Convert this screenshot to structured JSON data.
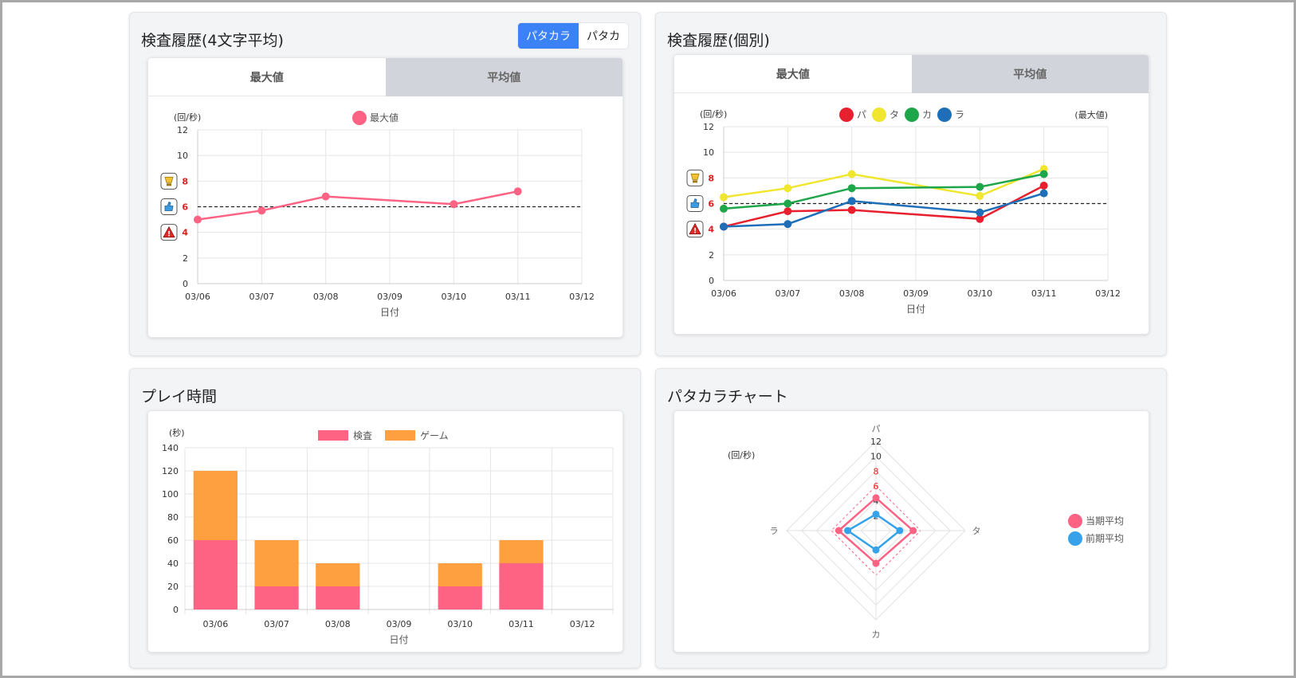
{
  "panels": {
    "history_avg": {
      "title": "検査履歴(4文字平均)",
      "toggle": [
        "パタカラ",
        "パタカ"
      ],
      "tabs": [
        "最大値",
        "平均値"
      ],
      "unit": "(回/秒)",
      "xlabel": "日付",
      "legend": "最大値"
    },
    "history_each": {
      "title": "検査履歴(個別)",
      "tabs": [
        "最大値",
        "平均値"
      ],
      "unit": "(回/秒)",
      "note": "(最大値)",
      "xlabel": "日付",
      "legend": [
        "パ",
        "タ",
        "カ",
        "ラ"
      ]
    },
    "play_time": {
      "title": "プレイ時間",
      "unit": "(秒)",
      "xlabel": "日付",
      "legend": [
        "検査",
        "ゲーム"
      ]
    },
    "radar": {
      "title": "パタカラチャート",
      "unit": "(回/秒)",
      "legend": [
        "当期平均",
        "前期平均"
      ]
    }
  },
  "colors": {
    "pink": "#ff6384",
    "orange": "#ffa040",
    "red": "#e8202e",
    "yellow": "#f0e630",
    "green": "#1ea64a",
    "blue": "#1f6fb8",
    "light_blue": "#36a2eb",
    "accent": "#3b82f6",
    "threshold_text": "#e02020"
  },
  "chart_data": [
    {
      "type": "line",
      "title": "検査履歴(4文字平均)",
      "xlabel": "日付",
      "ylabel": "(回/秒)",
      "categories": [
        "03/06",
        "03/07",
        "03/08",
        "03/09",
        "03/10",
        "03/11",
        "03/12"
      ],
      "series": [
        {
          "name": "最大値",
          "values": [
            5.0,
            5.7,
            6.8,
            null,
            6.2,
            7.2,
            null
          ]
        }
      ],
      "threshold": 6,
      "ylim": [
        0,
        12
      ],
      "yticks": [
        0,
        2,
        4,
        6,
        8,
        10,
        12
      ],
      "highlight_ticks": [
        4,
        6,
        8
      ],
      "grid": true,
      "legend": "top-center"
    },
    {
      "type": "line",
      "title": "検査履歴(個別)",
      "xlabel": "日付",
      "ylabel": "(回/秒)",
      "categories": [
        "03/06",
        "03/07",
        "03/08",
        "03/09",
        "03/10",
        "03/11",
        "03/12"
      ],
      "series": [
        {
          "name": "パ",
          "values": [
            4.2,
            5.4,
            5.5,
            null,
            4.8,
            7.4,
            null
          ]
        },
        {
          "name": "タ",
          "values": [
            6.5,
            7.2,
            8.3,
            null,
            6.6,
            8.7,
            null
          ]
        },
        {
          "name": "カ",
          "values": [
            5.6,
            6.0,
            7.2,
            null,
            7.3,
            8.3,
            null
          ]
        },
        {
          "name": "ラ",
          "values": [
            4.2,
            4.4,
            6.2,
            null,
            5.3,
            6.8,
            null
          ]
        }
      ],
      "threshold": 6,
      "ylim": [
        0,
        12
      ],
      "yticks": [
        0,
        2,
        4,
        6,
        8,
        10,
        12
      ],
      "highlight_ticks": [
        4,
        6,
        8
      ],
      "grid": true,
      "legend": "top-center"
    },
    {
      "type": "bar",
      "stacked": true,
      "title": "プレイ時間",
      "xlabel": "日付",
      "ylabel": "(秒)",
      "categories": [
        "03/06",
        "03/07",
        "03/08",
        "03/09",
        "03/10",
        "03/11",
        "03/12"
      ],
      "series": [
        {
          "name": "検査",
          "values": [
            60,
            20,
            20,
            0,
            20,
            40,
            0
          ]
        },
        {
          "name": "ゲーム",
          "values": [
            60,
            40,
            20,
            0,
            20,
            20,
            0
          ]
        }
      ],
      "ylim": [
        0,
        140
      ],
      "yticks": [
        0,
        20,
        40,
        60,
        80,
        100,
        120,
        140
      ],
      "grid": true,
      "legend": "top-center"
    },
    {
      "type": "radar",
      "title": "パタカラチャート",
      "unit": "(回/秒)",
      "axes": [
        "パ",
        "タ",
        "カ",
        "ラ"
      ],
      "series": [
        {
          "name": "当期平均",
          "values": [
            4.4,
            5.0,
            4.4,
            5.0
          ]
        },
        {
          "name": "前期平均",
          "values": [
            2.2,
            3.2,
            2.6,
            3.8
          ]
        }
      ],
      "threshold": 6,
      "rlim": [
        0,
        12
      ],
      "rticks": [
        2,
        4,
        6,
        8,
        10,
        12
      ],
      "highlight_ticks": [
        6,
        8
      ],
      "legend": "right"
    }
  ]
}
